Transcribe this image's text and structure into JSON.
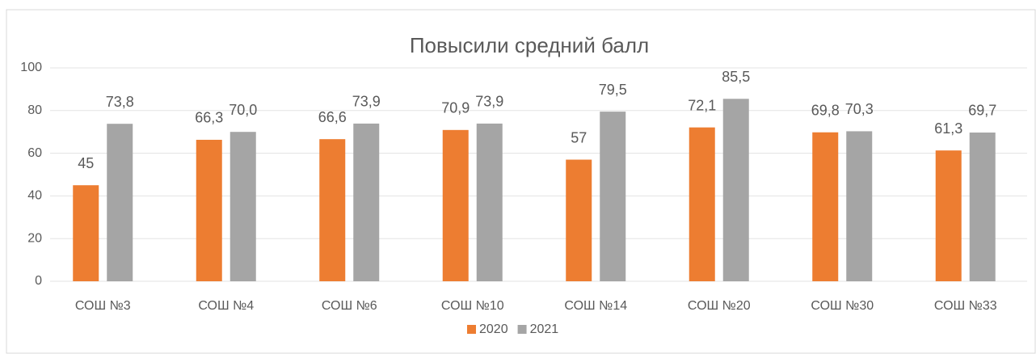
{
  "chart_data": {
    "type": "bar",
    "title": "Повысили средний балл",
    "categories": [
      "СОШ №3",
      "СОШ №4",
      "СОШ №6",
      "СОШ №10",
      "СОШ №14",
      "СОШ №20",
      "СОШ №30",
      "СОШ №33"
    ],
    "series": [
      {
        "name": "2020",
        "color": "#ed7d31",
        "values": [
          45,
          66.3,
          66.6,
          70.9,
          57,
          72.1,
          69.8,
          61.3
        ],
        "value_labels": [
          "45",
          "66,3",
          "66,6",
          "70,9",
          "57",
          "72,1",
          "69,8",
          "61,3"
        ]
      },
      {
        "name": "2021",
        "color": "#a5a5a5",
        "values": [
          73.8,
          70.0,
          73.9,
          73.9,
          79.5,
          85.5,
          70.3,
          69.7
        ],
        "value_labels": [
          "73,8",
          "70,0",
          "73,9",
          "73,9",
          "79,5",
          "85,5",
          "70,3",
          "69,7"
        ]
      }
    ],
    "ylim": [
      0,
      100
    ],
    "yticks": [
      0,
      20,
      40,
      60,
      80,
      100
    ],
    "grid": true,
    "legend": "bottom"
  }
}
